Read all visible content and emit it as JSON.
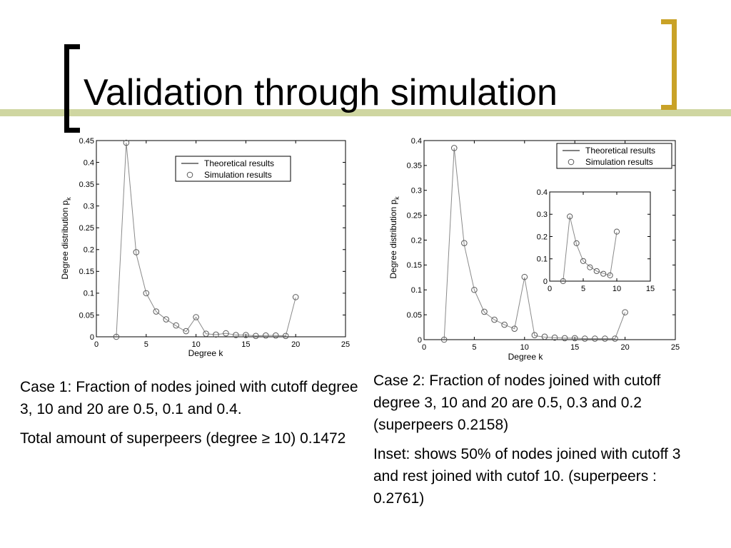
{
  "slide": {
    "title": "Validation through simulation",
    "colors": {
      "band": "#cfd6a1",
      "left_bracket": "#000000",
      "right_bracket": "#c9a227"
    }
  },
  "left_text": {
    "para1": "Case 1: Fraction of nodes joined with cutoff degree 3, 10 and 20 are 0.5, 0.1 and 0.4.",
    "para2": "Total amount of superpeers (degree ≥ 10) 0.1472"
  },
  "right_text": {
    "para1": "Case 2: Fraction of nodes joined with cutoff degree 3, 10 and 20 are 0.5, 0.3 and 0.2 (superpeers 0.2158)",
    "para2": "Inset: shows 50% of nodes joined with cutoff 3 and rest joined with cutof 10. (superpeers : 0.2761)"
  },
  "chart_data": [
    {
      "type": "line",
      "xlabel": "Degree k",
      "ylabel": "Degree distribution p",
      "ylabel_sub": "k",
      "xlim": [
        0,
        25
      ],
      "ylim": [
        0,
        0.45
      ],
      "xticks": [
        "0",
        "5",
        "10",
        "15",
        "20",
        "25"
      ],
      "xtick_values": [
        0,
        5,
        10,
        15,
        20,
        25
      ],
      "yticks": [
        "0",
        "0.05",
        "0.1",
        "0.15",
        "0.2",
        "0.25",
        "0.3",
        "0.35",
        "0.4",
        "0.45"
      ],
      "ytick_values": [
        0,
        0.05,
        0.1,
        0.15,
        0.2,
        0.25,
        0.3,
        0.35,
        0.4,
        0.45
      ],
      "legend": {
        "placement": "top-right",
        "entries": [
          "Theoretical results",
          "Simulation results"
        ]
      },
      "series": [
        {
          "name": "Theoretical results",
          "style": "line",
          "x": [
            2,
            3,
            4,
            5,
            6,
            7,
            8,
            9,
            10,
            11,
            12,
            13,
            14,
            15,
            16,
            17,
            18,
            19,
            20
          ],
          "y": [
            0,
            0.445,
            0.19,
            0.1,
            0.058,
            0.04,
            0.025,
            0.012,
            0.045,
            0.007,
            0.005,
            0.008,
            0.004,
            0.004,
            0.002,
            0.003,
            0.003,
            0.002,
            0.09
          ]
        },
        {
          "name": "Simulation results",
          "style": "markers",
          "x": [
            2,
            3,
            4,
            5,
            6,
            7,
            8,
            9,
            10,
            11,
            12,
            13,
            14,
            15,
            16,
            17,
            18,
            19,
            20
          ],
          "y": [
            0,
            0.445,
            0.194,
            0.1,
            0.058,
            0.04,
            0.026,
            0.013,
            0.045,
            0.007,
            0.005,
            0.008,
            0.004,
            0.004,
            0.002,
            0.003,
            0.003,
            0.002,
            0.091
          ]
        }
      ]
    },
    {
      "type": "line",
      "xlabel": "Degree k",
      "ylabel": "Degree distribution p",
      "ylabel_sub": "k",
      "xlim": [
        0,
        25
      ],
      "ylim": [
        0,
        0.4
      ],
      "xticks": [
        "0",
        "5",
        "10",
        "15",
        "20",
        "25"
      ],
      "xtick_values": [
        0,
        5,
        10,
        15,
        20,
        25
      ],
      "yticks": [
        "0",
        "0.05",
        "0.1",
        "0.15",
        "0.2",
        "0.25",
        "0.3",
        "0.35",
        "0.4"
      ],
      "ytick_values": [
        0,
        0.05,
        0.1,
        0.15,
        0.2,
        0.25,
        0.3,
        0.35,
        0.4
      ],
      "legend": {
        "placement": "top-right",
        "entries": [
          "Theoretical results",
          "Simulation results"
        ]
      },
      "series": [
        {
          "name": "Theoretical results",
          "style": "line",
          "x": [
            2,
            3,
            4,
            5,
            6,
            7,
            8,
            9,
            10,
            11,
            12,
            13,
            14,
            15,
            16,
            17,
            18,
            19,
            20
          ],
          "y": [
            0,
            0.385,
            0.19,
            0.1,
            0.055,
            0.04,
            0.03,
            0.022,
            0.125,
            0.008,
            0.005,
            0.004,
            0.003,
            0.003,
            0.002,
            0.002,
            0.002,
            0.002,
            0.055
          ]
        },
        {
          "name": "Simulation results",
          "style": "markers",
          "x": [
            2,
            3,
            4,
            5,
            6,
            7,
            8,
            9,
            10,
            11,
            12,
            13,
            14,
            15,
            16,
            17,
            18,
            19,
            20
          ],
          "y": [
            0,
            0.385,
            0.194,
            0.1,
            0.056,
            0.04,
            0.03,
            0.022,
            0.126,
            0.009,
            0.006,
            0.004,
            0.003,
            0.003,
            0.002,
            0.002,
            0.002,
            0.002,
            0.055
          ]
        }
      ],
      "inset": {
        "xlim": [
          0,
          15
        ],
        "ylim": [
          0,
          0.4
        ],
        "xticks": [
          "0",
          "5",
          "10",
          "15"
        ],
        "xtick_values": [
          0,
          5,
          10,
          15
        ],
        "yticks": [
          "0",
          "0.1",
          "0.2",
          "0.3",
          "0.4"
        ],
        "ytick_values": [
          0,
          0.1,
          0.2,
          0.3,
          0.4
        ],
        "series": [
          {
            "style": "line",
            "x": [
              2,
              3,
              4,
              5,
              6,
              7,
              8,
              9,
              10
            ],
            "y": [
              0,
              0.29,
              0.165,
              0.09,
              0.065,
              0.045,
              0.035,
              0.025,
              0.22
            ]
          },
          {
            "style": "markers",
            "x": [
              2,
              3,
              4,
              5,
              6,
              7,
              8,
              9,
              10
            ],
            "y": [
              0,
              0.29,
              0.17,
              0.09,
              0.062,
              0.045,
              0.033,
              0.026,
              0.222
            ]
          }
        ]
      }
    }
  ]
}
